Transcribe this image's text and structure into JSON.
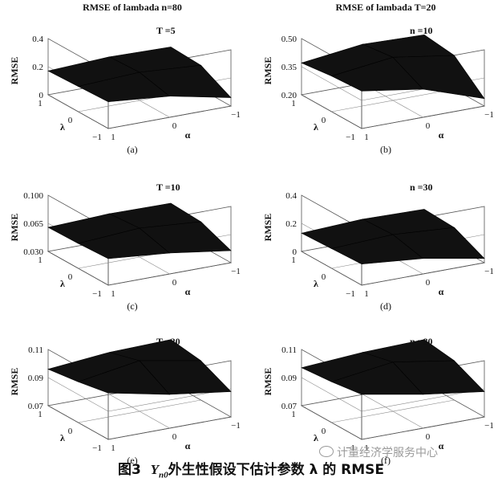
{
  "figure_caption": {
    "prefix": "图3",
    "symbol": "Y",
    "subscript": "n0",
    "text": "外生性假设下估计参数 λ 的 RMSE"
  },
  "watermark": {
    "text": "计量经济学服务中心",
    "icon": "chat-bubble-icon"
  },
  "chart_data": [
    {
      "panel": "(a)",
      "type": "surface3d",
      "title": "RMSE of lambada    n=80",
      "inset_label": "T =5",
      "zlabel": "RMSE",
      "xlabel": "λ",
      "ylabel": "α",
      "z_ticks": [
        "0.4",
        "0.2",
        "0"
      ],
      "zlim": [
        0,
        0.4
      ],
      "x_ticks": [
        "1",
        "0",
        "−1"
      ],
      "y_ticks": [
        "1",
        "0",
        "−1"
      ],
      "x": [
        1,
        0,
        -1
      ],
      "y": [
        1,
        0,
        -1
      ],
      "z": [
        [
          0.17,
          0.19,
          0.18
        ],
        [
          0.18,
          0.2,
          0.17
        ],
        [
          0.19,
          0.15,
          0.06
        ]
      ]
    },
    {
      "panel": "(b)",
      "type": "surface3d",
      "title": "RMSE of lambada    T=20",
      "inset_label": "n =10",
      "zlabel": "RMSE",
      "xlabel": "λ",
      "ylabel": "α",
      "z_ticks": [
        "0.50",
        "0.35",
        "0.20"
      ],
      "zlim": [
        0.2,
        0.5
      ],
      "x_ticks": [
        "1",
        "0",
        "−1"
      ],
      "y_ticks": [
        "1",
        "0",
        "−1"
      ],
      "x": [
        1,
        0,
        -1
      ],
      "y": [
        1,
        0,
        -1
      ],
      "z": [
        [
          0.37,
          0.41,
          0.4
        ],
        [
          0.39,
          0.43,
          0.38
        ],
        [
          0.4,
          0.35,
          0.24
        ]
      ]
    },
    {
      "panel": "(c)",
      "type": "surface3d",
      "title": "",
      "inset_label": "T =10",
      "zlabel": "RMSE",
      "xlabel": "λ",
      "ylabel": "α",
      "z_ticks": [
        "0.100",
        "0.065",
        "0.030"
      ],
      "zlim": [
        0.03,
        0.1
      ],
      "x_ticks": [
        "1",
        "0",
        "−1"
      ],
      "y_ticks": [
        "1",
        "0",
        "−1"
      ],
      "x": [
        1,
        0,
        -1
      ],
      "y": [
        1,
        0,
        -1
      ],
      "z": [
        [
          0.06,
          0.063,
          0.062
        ],
        [
          0.061,
          0.066,
          0.06
        ],
        [
          0.063,
          0.056,
          0.045
        ]
      ]
    },
    {
      "panel": "(d)",
      "type": "surface3d",
      "title": "",
      "inset_label": "n =30",
      "zlabel": "RMSE",
      "xlabel": "λ",
      "ylabel": "α",
      "z_ticks": [
        "0.4",
        "0.2",
        "0"
      ],
      "zlim": [
        0,
        0.4
      ],
      "x_ticks": [
        "1",
        "0",
        "−1"
      ],
      "y_ticks": [
        "1",
        "0",
        "−1"
      ],
      "x": [
        1,
        0,
        -1
      ],
      "y": [
        1,
        0,
        -1
      ],
      "z": [
        [
          0.13,
          0.15,
          0.14
        ],
        [
          0.14,
          0.16,
          0.13
        ],
        [
          0.15,
          0.11,
          0.03
        ]
      ]
    },
    {
      "panel": "(e)",
      "type": "surface3d",
      "title": "",
      "inset_label": "T =20",
      "zlabel": "RMSE",
      "xlabel": "λ",
      "ylabel": "α",
      "z_ticks": [
        "0.11",
        "0.09",
        "0.07"
      ],
      "zlim": [
        0.07,
        0.11
      ],
      "x_ticks": [
        "1",
        "0",
        "−1"
      ],
      "y_ticks": [
        "1",
        "0",
        "−1"
      ],
      "x": [
        1,
        0,
        -1
      ],
      "y": [
        1,
        0,
        -1
      ],
      "z": [
        [
          0.096,
          0.1,
          0.101
        ],
        [
          0.099,
          0.106,
          0.098
        ],
        [
          0.103,
          0.094,
          0.088
        ]
      ]
    },
    {
      "panel": "(f)",
      "type": "surface3d",
      "title": "",
      "inset_label": "n =80",
      "zlabel": "RMSE",
      "xlabel": "λ",
      "ylabel": "α",
      "z_ticks": [
        "0.11",
        "0.09",
        "0.07"
      ],
      "zlim": [
        0.07,
        0.11
      ],
      "x_ticks": [
        "1",
        "0",
        "−1"
      ],
      "y_ticks": [
        "1",
        "0",
        "−1"
      ],
      "x": [
        1,
        0,
        -1
      ],
      "y": [
        1,
        0,
        -1
      ],
      "z": [
        [
          0.097,
          0.1,
          0.101
        ],
        [
          0.099,
          0.105,
          0.098
        ],
        [
          0.102,
          0.094,
          0.088
        ]
      ]
    }
  ]
}
